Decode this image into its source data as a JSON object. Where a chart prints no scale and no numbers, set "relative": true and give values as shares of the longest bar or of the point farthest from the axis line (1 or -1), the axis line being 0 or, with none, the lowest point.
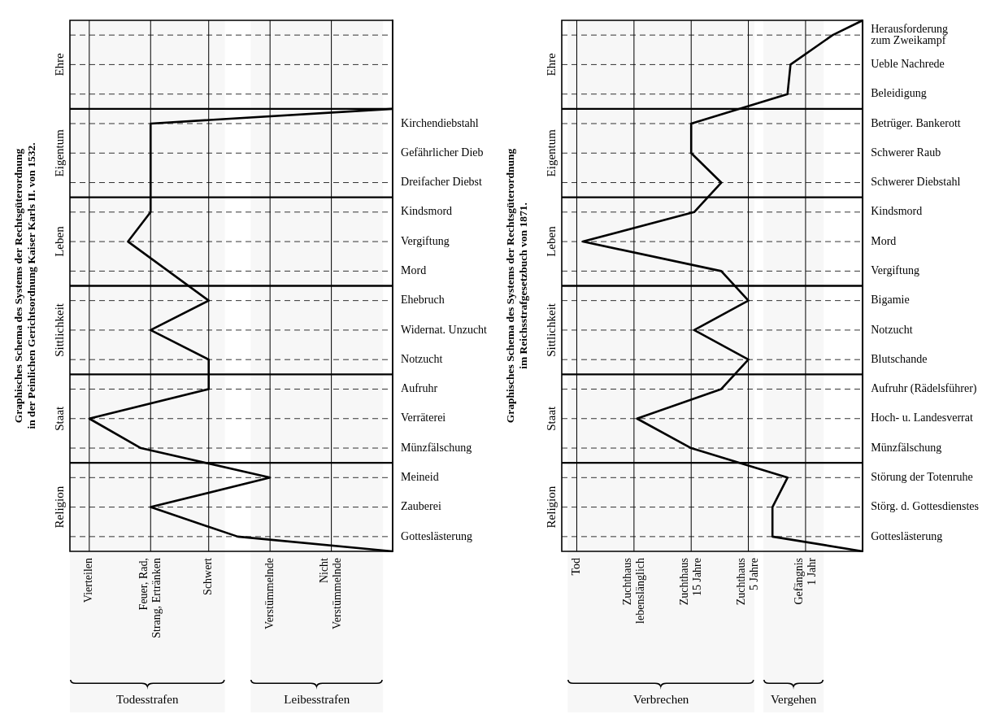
{
  "chart_data": [
    {
      "type": "line",
      "orientation": "horizontal",
      "relative": true,
      "title": "Graphisches Schema des Systems der Rechtsgüterordnung\nin der Peinlichen Gerichtsordnung Kaiser Karls II. von 1532.",
      "categories": [
        null,
        null,
        null,
        null,
        null,
        null,
        null,
        "Kirchendiebstahl",
        null,
        "Gefährlicher Dieb",
        null,
        "Dreifacher Diebst",
        null,
        "Kindsmord",
        null,
        "Vergiftung",
        null,
        "Mord",
        null,
        "Ehebruch",
        null,
        "Widernat. Unzucht",
        null,
        "Notzucht",
        null,
        "Aufruhr",
        null,
        "Verräterei",
        null,
        "Münzfälschung",
        null,
        "Meineid",
        null,
        "Zauberei",
        null,
        "Gotteslästerung",
        null
      ],
      "grid": "y",
      "marker": "none",
      "series": [
        {
          "color": "#000000",
          "values": [
            null,
            null,
            null,
            null,
            null,
            null,
            1,
            0.25,
            null,
            0.25,
            null,
            0.25,
            null,
            0.25,
            null,
            0.18,
            null,
            null,
            null,
            0.43,
            null,
            0.25,
            null,
            0.43,
            null,
            0.43,
            null,
            0.06,
            null,
            0.22,
            null,
            0.62,
            null,
            0.25,
            null,
            0.52,
            1
          ]
        }
      ],
      "ref_lines": [
        {
          "axis": "x",
          "value": 0.06,
          "label": "Vierteilen"
        },
        {
          "axis": "x",
          "value": 0.25,
          "label": "Feuer, Rad,\nStrang, Ertränken"
        },
        {
          "axis": "x",
          "value": 0.43,
          "label": "Schwert"
        },
        {
          "axis": "x",
          "value": 0.62,
          "label": "Verstümmelnde"
        },
        {
          "axis": "x",
          "value": 0.81,
          "label": "Nicht\nVerstümmelnde"
        }
      ],
      "annotations": [
        "Ehre",
        "Eigentum",
        "Leben",
        "Sittlichkeit",
        "Staat",
        "Religion"
      ],
      "bands": [
        {
          "axis": "x",
          "from": 0,
          "to": 0.48,
          "label": "Todesstrafen",
          "color": "#f7f7f7"
        },
        {
          "axis": "x",
          "from": 0.56,
          "to": 0.97,
          "label": "Leibesstrafen",
          "color": "#f7f7f7"
        }
      ]
    },
    {
      "type": "line",
      "orientation": "horizontal",
      "relative": true,
      "title": "Graphisches Schema des Systems der Rechtsgüterordnung\nim Reichsstrafgesetzbuch von 1871.",
      "categories": [
        null,
        "Herausforderung\nzum Zweikampf",
        null,
        "Ueble Nachrede",
        null,
        "Beleidigung",
        null,
        "Betrüger. Bankerott",
        null,
        "Schwerer Raub",
        null,
        "Schwerer Diebstahl",
        null,
        "Kindsmord",
        null,
        "Mord",
        null,
        "Vergiftung",
        null,
        "Bigamie",
        null,
        "Notzucht",
        null,
        "Blutschande",
        null,
        "Aufruhr (Rädelsführer)",
        null,
        "Hoch- u. Landesverrat",
        null,
        "Münzfälschung",
        null,
        "Störung der Totenruhe",
        null,
        "Störg. d. Gottesdienstes",
        null,
        "Gotteslästerung",
        null
      ],
      "grid": "y",
      "marker": "none",
      "series": [
        {
          "color": "#000000",
          "values": [
            1,
            0.9,
            null,
            0.76,
            null,
            0.75,
            null,
            0.43,
            null,
            0.43,
            null,
            0.53,
            null,
            0.44,
            null,
            0.07,
            null,
            0.53,
            null,
            0.62,
            null,
            0.44,
            null,
            0.62,
            null,
            0.53,
            null,
            0.25,
            null,
            0.43,
            null,
            0.75,
            null,
            0.7,
            null,
            0.7,
            1
          ]
        }
      ],
      "ref_lines": [
        {
          "axis": "x",
          "value": 0.05,
          "label": "Tod"
        },
        {
          "axis": "x",
          "value": 0.24,
          "label": "Zuchthaus\nlebenslänglich"
        },
        {
          "axis": "x",
          "value": 0.43,
          "label": "Zuchthaus\n15 Jahre"
        },
        {
          "axis": "x",
          "value": 0.62,
          "label": "Zuchthaus\n5 Jahre"
        },
        {
          "axis": "x",
          "value": 0.81,
          "label": "Gefängnis\n1 Jahr"
        }
      ],
      "annotations": [
        "Ehre",
        "Eigentum",
        "Leben",
        "Sittlichkeit",
        "Staat",
        "Religion"
      ],
      "bands": [
        {
          "axis": "x",
          "from": 0.02,
          "to": 0.64,
          "label": "Verbrechen",
          "color": "#f7f7f7"
        },
        {
          "axis": "x",
          "from": 0.67,
          "to": 0.87,
          "label": "Vergehen",
          "color": "#f7f7f7"
        }
      ]
    }
  ]
}
